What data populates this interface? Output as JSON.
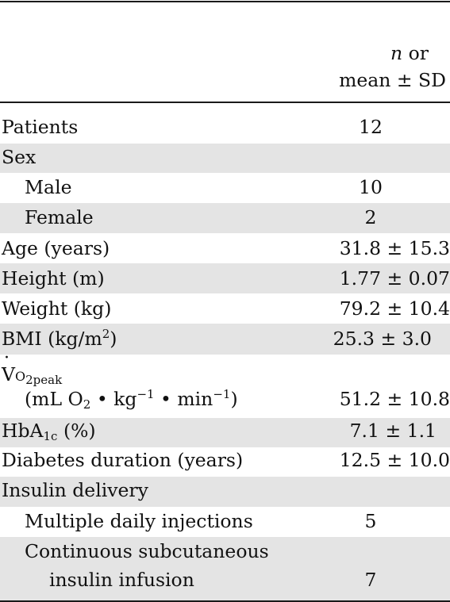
{
  "header": {
    "line1_italic": "n",
    "line1_rest": "or",
    "line2": "mean ± SD"
  },
  "rows": [
    {
      "label": "Patients",
      "value": "12"
    },
    {
      "label": "Sex",
      "value": ""
    },
    {
      "label": "Male",
      "value": "10"
    },
    {
      "label": "Female",
      "value": "2"
    },
    {
      "label": "Age (years)",
      "value": "31.8 ± 15.3"
    },
    {
      "label": "Height (m)",
      "value": "1.77 ± 0.07"
    },
    {
      "label": "Weight (kg)",
      "value": "79.2 ± 10.4"
    },
    {
      "label_main": "BMI (kg/m",
      "label_sup": "2",
      "label_end": ")",
      "value": "25.3 ± 3.0"
    },
    {
      "label_v": "V",
      "label_sub": "O",
      "label_sub2": "2peak",
      "value": ""
    },
    {
      "label_main": "(mL O",
      "label_sub": "2",
      "label_mid": " • kg",
      "label_sup1": "−1",
      "label_mid2": " • min",
      "label_sup2": "−1",
      "label_end": ")",
      "value": "51.2 ± 10.8"
    },
    {
      "label_main": "HbA",
      "label_sub": "1c",
      "label_end": " (%)",
      "value": "7.1 ± 1.1"
    },
    {
      "label": "Diabetes duration (years)",
      "value": "12.5 ± 10.0"
    },
    {
      "label": "Insulin delivery",
      "value": ""
    },
    {
      "label": "Multiple daily injections",
      "value": "5"
    },
    {
      "label": "Continuous subcutaneous",
      "value": ""
    },
    {
      "label": "insulin infusion",
      "value": "7"
    }
  ]
}
